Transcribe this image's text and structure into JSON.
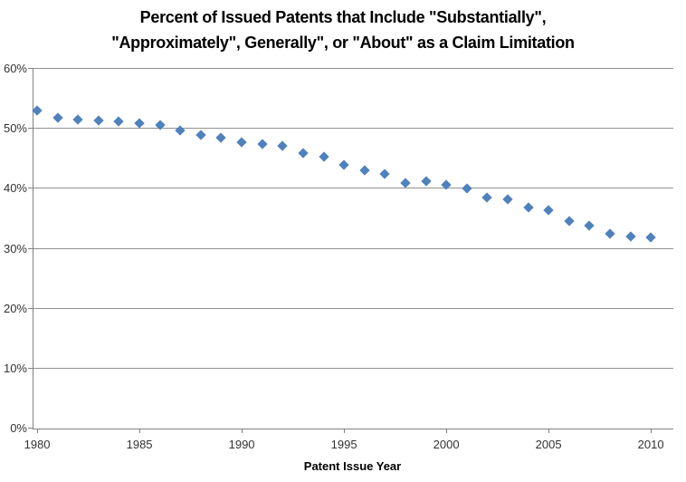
{
  "title": {
    "line1": "Percent of Issued Patents that Include \"Substantially\",",
    "line2": "\"Approximately\", Generally\", or \"About\" as a Claim Limitation"
  },
  "chart_data": {
    "type": "scatter",
    "title": "Percent of Issued Patents that Include \"Substantially\", \"Approximately\", Generally\", or \"About\" as a Claim Limitation",
    "xlabel": "Patent Issue Year",
    "ylabel": "",
    "x": [
      1980,
      1981,
      1982,
      1983,
      1984,
      1985,
      1986,
      1987,
      1988,
      1989,
      1990,
      1991,
      1992,
      1993,
      1994,
      1995,
      1996,
      1997,
      1998,
      1999,
      2000,
      2001,
      2002,
      2003,
      2004,
      2005,
      2006,
      2007,
      2008,
      2009,
      2010
    ],
    "y": [
      53.0,
      51.9,
      51.5,
      51.4,
      51.2,
      50.9,
      50.7,
      49.7,
      48.9,
      48.5,
      47.8,
      47.5,
      47.1,
      46.0,
      45.4,
      44.0,
      43.0,
      42.4,
      41.0,
      41.3,
      40.7,
      40.0,
      38.5,
      38.2,
      36.9,
      36.4,
      34.6,
      33.9,
      32.5,
      32.0,
      31.9
    ],
    "xlim": [
      1979.82,
      2011.1
    ],
    "ylim": [
      0,
      60
    ],
    "x_ticks": [
      1980,
      1985,
      1990,
      1995,
      2000,
      2005,
      2010
    ],
    "x_tick_labels": [
      "1980",
      "1985",
      "1990",
      "1995",
      "2000",
      "2005",
      "2010"
    ],
    "y_ticks": [
      0,
      10,
      20,
      30,
      40,
      50,
      60
    ],
    "y_tick_labels": [
      "0%",
      "10%",
      "20%",
      "30%",
      "40%",
      "50%",
      "60%"
    ],
    "grid": "horizontal",
    "legend": "none",
    "marker": "diamond",
    "marker_color": "#4F81BD",
    "gridline_color": "#919191",
    "axis_color": "#808080",
    "tick_label_color": "#333333"
  }
}
